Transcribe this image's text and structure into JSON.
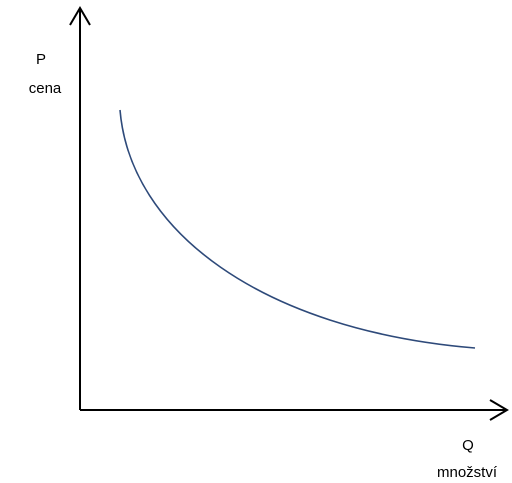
{
  "diagram": {
    "y_axis": {
      "symbol": "P",
      "name": "cena"
    },
    "x_axis": {
      "symbol": "Q",
      "name": "množství"
    },
    "curve": {
      "color": "#2e4a7a",
      "shape": "downward-sloping convex curve"
    },
    "axis_color": "#000000"
  }
}
